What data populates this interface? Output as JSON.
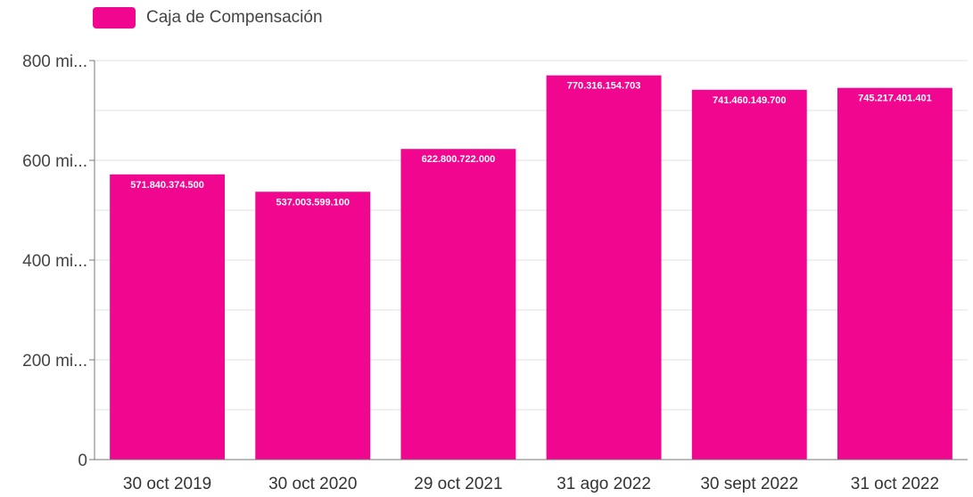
{
  "chart_data": {
    "type": "bar",
    "categories": [
      "30 oct 2019",
      "30 oct 2020",
      "29 oct 2021",
      "31 ago 2022",
      "30 sept 2022",
      "31 oct 2022"
    ],
    "series": [
      {
        "name": "Caja de Compensación",
        "values": [
          571840374500,
          537003599100,
          622800722000,
          770316154703,
          741460149700,
          745217401401
        ],
        "labels": [
          "571.840.374.500",
          "537.003.599.100",
          "622.800.722.000",
          "770.316.154.703",
          "741.460.149.700",
          "745.217.401.401"
        ]
      }
    ],
    "yticks": [
      {
        "value": 0,
        "label": "0"
      },
      {
        "value": 200000000000,
        "label": "200 mi..."
      },
      {
        "value": 400000000000,
        "label": "400 mi..."
      },
      {
        "value": 600000000000,
        "label": "600 mi..."
      },
      {
        "value": 800000000000,
        "label": "800 mi..."
      }
    ],
    "ylim": [
      0,
      800000000000
    ],
    "grid": true,
    "legend_position": "top-left",
    "colors": {
      "bar": "#f0068f",
      "grid": "#e2e2e2",
      "axis": "#777777"
    }
  }
}
